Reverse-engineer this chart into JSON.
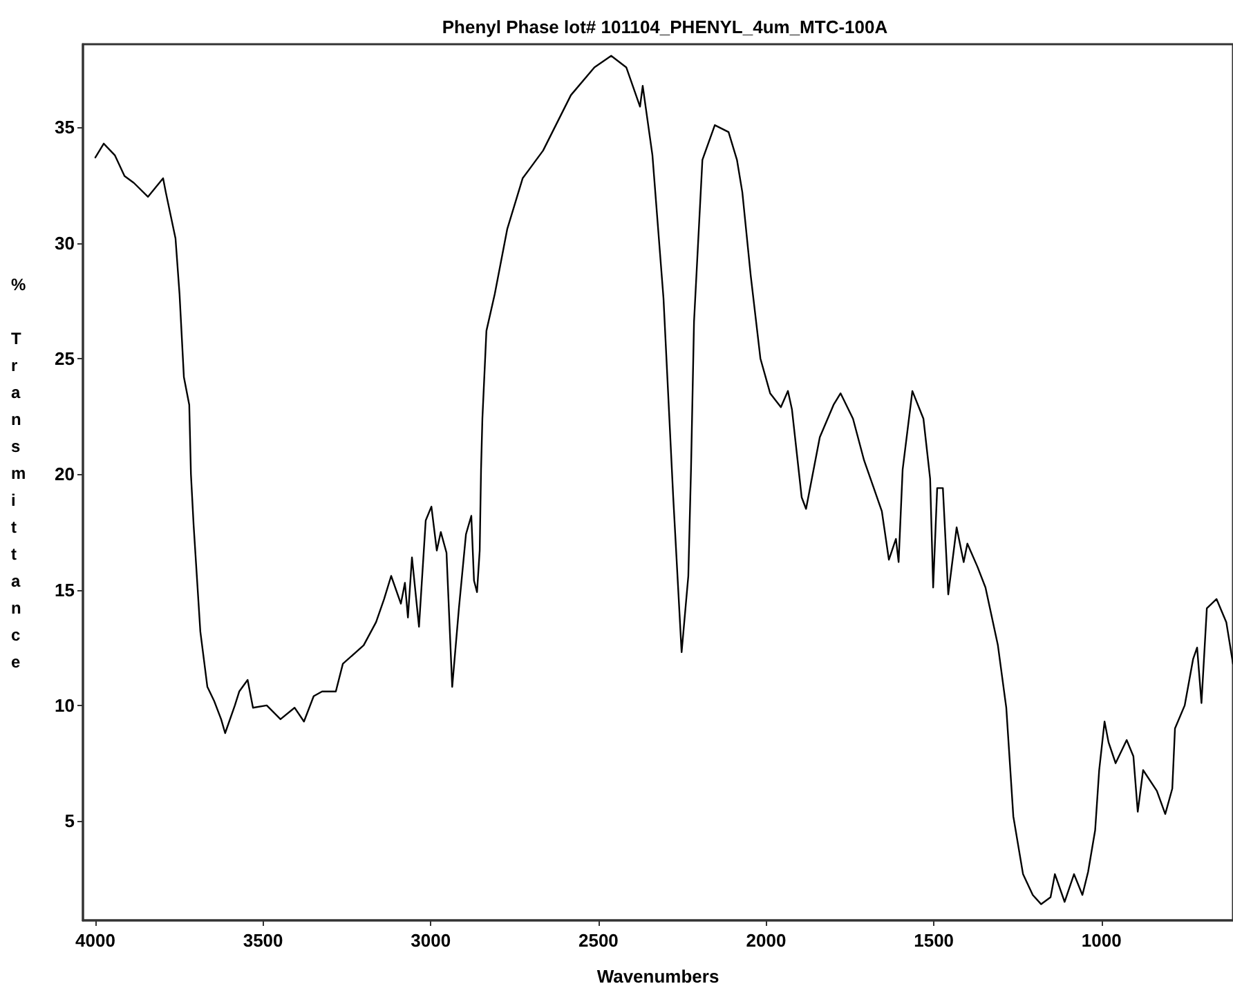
{
  "chart_data": {
    "type": "line",
    "title": "Phenyl Phase lot# 101104_PHENYL_4um_MTC-100A",
    "xlabel": "Wavenumbers",
    "ylabel": "% Transmittance",
    "xlim": [
      4037,
      608
    ],
    "xticks": [
      4000,
      3500,
      3000,
      2500,
      2000,
      1500,
      1000
    ],
    "ylim": [
      0.7,
      38.6
    ],
    "yticks": [
      5,
      10,
      15,
      20,
      25,
      30,
      35
    ],
    "grid": false,
    "marker": "none",
    "line_style": "solid",
    "series": [
      {
        "color": "#000000",
        "x": [
          4000,
          3975,
          3942,
          3913,
          3885,
          3843,
          3798,
          3790,
          3761,
          3749,
          3736,
          3720,
          3715,
          3707,
          3687,
          3666,
          3646,
          3625,
          3613,
          3584,
          3571,
          3546,
          3530,
          3489,
          3448,
          3406,
          3378,
          3349,
          3324,
          3283,
          3262,
          3200,
          3163,
          3139,
          3118,
          3089,
          3077,
          3068,
          3056,
          3035,
          3015,
          2998,
          2982,
          2970,
          2953,
          2936,
          2916,
          2895,
          2879,
          2871,
          2862,
          2854,
          2850,
          2846,
          2834,
          2809,
          2772,
          2726,
          2665,
          2582,
          2512,
          2462,
          2417,
          2376,
          2368,
          2339,
          2306,
          2277,
          2252,
          2232,
          2224,
          2215,
          2190,
          2153,
          2112,
          2087,
          2071,
          2046,
          2017,
          1988,
          1956,
          1935,
          1923,
          1894,
          1881,
          1840,
          1799,
          1778,
          1741,
          1708,
          1679,
          1655,
          1634,
          1613,
          1605,
          1593,
          1564,
          1531,
          1511,
          1502,
          1490,
          1473,
          1457,
          1432,
          1411,
          1400,
          1370,
          1346,
          1309,
          1284,
          1263,
          1234,
          1205,
          1180,
          1152,
          1139,
          1110,
          1082,
          1057,
          1040,
          1019,
          1007,
          991,
          979,
          958,
          925,
          905,
          892,
          876,
          835,
          810,
          789,
          781,
          752,
          727,
          715,
          702,
          686,
          657,
          628,
          608
        ],
        "values": [
          33.7,
          34.3,
          33.8,
          32.9,
          32.6,
          32.0,
          32.8,
          32.2,
          30.2,
          27.8,
          24.2,
          23.0,
          20.0,
          17.8,
          13.2,
          10.8,
          10.2,
          9.4,
          8.8,
          10.0,
          10.6,
          11.1,
          9.9,
          10.0,
          9.4,
          9.9,
          9.3,
          10.4,
          10.6,
          10.6,
          11.8,
          12.6,
          13.6,
          14.6,
          15.6,
          14.4,
          15.3,
          13.8,
          16.4,
          13.4,
          18.0,
          18.6,
          16.7,
          17.5,
          16.6,
          10.8,
          14.2,
          17.4,
          18.2,
          15.4,
          14.9,
          16.7,
          20.2,
          22.4,
          26.2,
          27.8,
          30.6,
          32.8,
          34.0,
          36.4,
          37.6,
          38.1,
          37.6,
          35.9,
          36.8,
          33.8,
          27.6,
          19.0,
          12.3,
          15.6,
          20.2,
          26.6,
          33.6,
          35.1,
          34.8,
          33.6,
          32.2,
          28.6,
          25.0,
          23.5,
          22.9,
          23.6,
          22.8,
          19.0,
          18.5,
          21.6,
          23.0,
          23.5,
          22.4,
          20.6,
          19.4,
          18.4,
          16.3,
          17.2,
          16.2,
          20.2,
          23.6,
          22.4,
          19.8,
          15.1,
          19.4,
          19.4,
          14.8,
          17.7,
          16.2,
          17.0,
          16.0,
          15.1,
          12.6,
          9.9,
          5.2,
          2.7,
          1.8,
          1.4,
          1.7,
          2.7,
          1.5,
          2.7,
          1.8,
          2.8,
          4.6,
          7.2,
          9.3,
          8.4,
          7.5,
          8.5,
          7.8,
          5.4,
          7.2,
          6.3,
          5.3,
          6.4,
          9.0,
          10.0,
          12.0,
          12.5,
          10.1,
          14.2,
          14.6,
          13.6,
          11.8
        ]
      }
    ]
  }
}
